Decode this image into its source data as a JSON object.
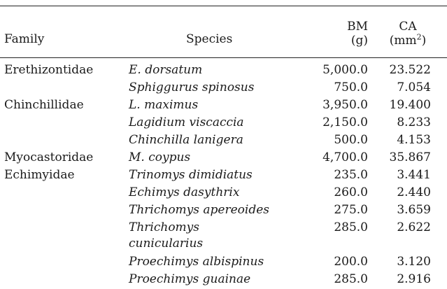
{
  "table": {
    "headers": {
      "family": "Family",
      "species": "Species",
      "bm": "BM",
      "bm_unit": "(g)",
      "ca": "CA",
      "ca_unit_prefix": "(mm",
      "ca_unit_sup": "2",
      "ca_unit_suffix": ")"
    },
    "rows": [
      {
        "family": "Erethizontidae",
        "species": "E. dorsatum",
        "bm": "5,000.0",
        "ca": "23.522"
      },
      {
        "family": "",
        "species": "Sphiggurus spinosus",
        "bm": "750.0",
        "ca": "7.054"
      },
      {
        "family": "Chinchillidae",
        "species": "L. maximus",
        "bm": "3,950.0",
        "ca": "19.400"
      },
      {
        "family": "",
        "species": "Lagidium viscaccia",
        "bm": "2,150.0",
        "ca": "8.233"
      },
      {
        "family": "",
        "species": "Chinchilla lanigera",
        "bm": "500.0",
        "ca": "4.153"
      },
      {
        "family": "Myocastoridae",
        "species": "M. coypus",
        "bm": "4,700.0",
        "ca": "35.867"
      },
      {
        "family": "Echimyidae",
        "species": "Trinomys dimidiatus",
        "bm": "235.0",
        "ca": "3.441"
      },
      {
        "family": "",
        "species": "Echimys dasythrix",
        "bm": "260.0",
        "ca": "2.440"
      },
      {
        "family": "",
        "species": "Thrichomys apereoides",
        "bm": "275.0",
        "ca": "3.659"
      },
      {
        "family": "",
        "species": "Thrichomys",
        "bm": "285.0",
        "ca": "2.622"
      },
      {
        "family": "",
        "species": "cunicularius",
        "bm": "",
        "ca": ""
      },
      {
        "family": "",
        "species": "Proechimys albispinus",
        "bm": "200.0",
        "ca": "3.120"
      },
      {
        "family": "",
        "species": "Proechimys guainae",
        "bm": "285.0",
        "ca": "2.916"
      }
    ]
  }
}
